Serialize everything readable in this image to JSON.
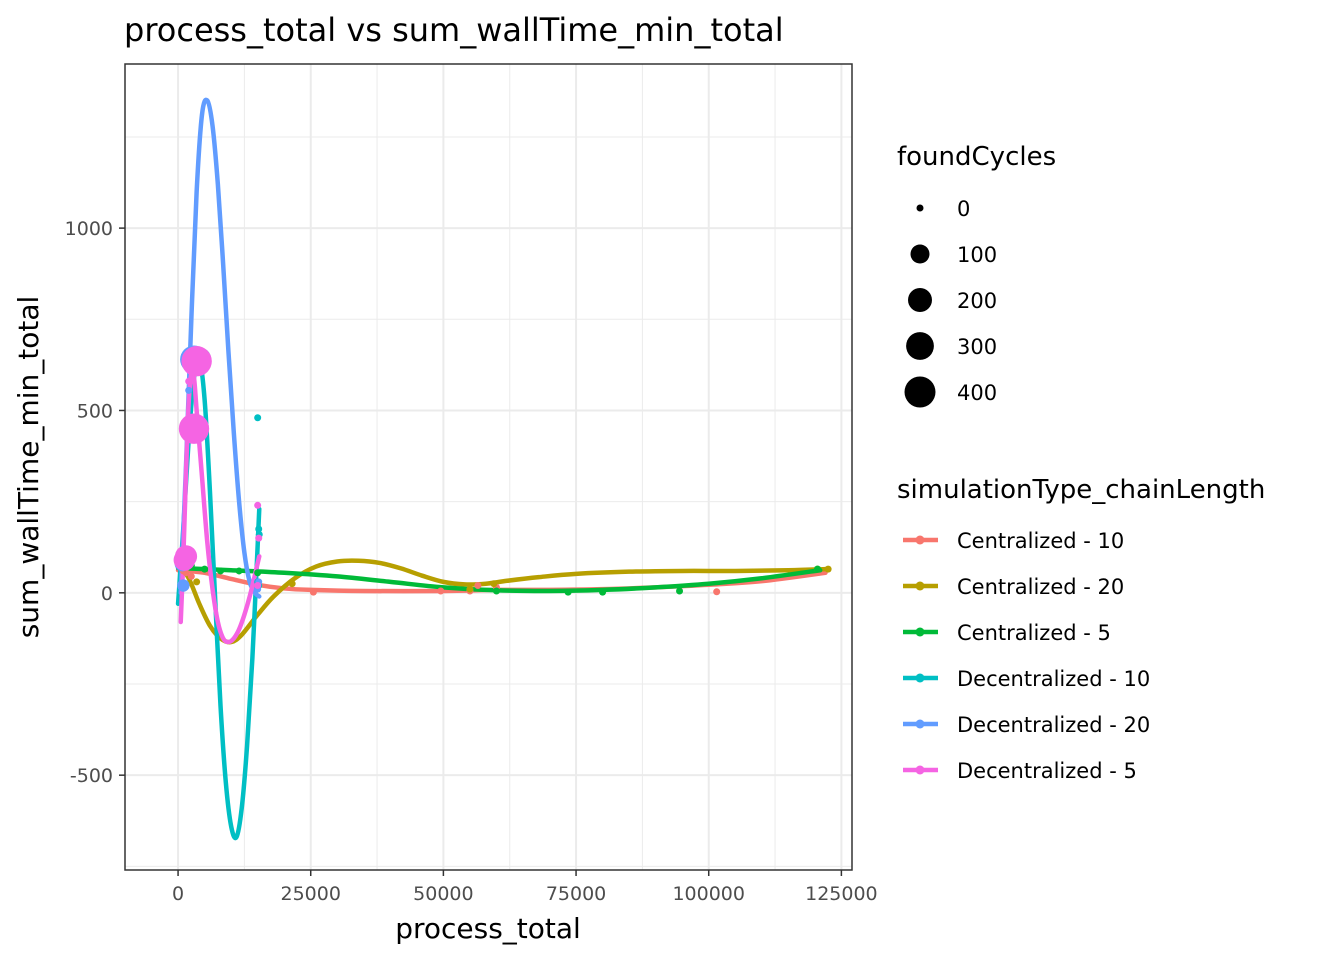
{
  "chart_data": {
    "type": "scatter",
    "title": "process_total  vs  sum_wallTime_min_total",
    "xlabel": "process_total",
    "ylabel": "sum_wallTime_min_total",
    "xlim": [
      -10000,
      127000
    ],
    "ylim": [
      -760,
      1450
    ],
    "x_ticks": [
      0,
      25000,
      50000,
      75000,
      100000,
      125000
    ],
    "x_tick_labels": [
      "0",
      "25000",
      "50000",
      "75000",
      "100000",
      "125000"
    ],
    "y_ticks": [
      -500,
      0,
      500,
      1000
    ],
    "y_tick_labels": [
      "-500",
      "0",
      "500",
      "1000"
    ],
    "grid": true,
    "smooth_lines": true,
    "size_legend": {
      "title": "foundCycles",
      "labels": [
        "0",
        "100",
        "200",
        "300",
        "400"
      ],
      "values": [
        0,
        100,
        200,
        300,
        400
      ]
    },
    "color_legend": {
      "title": "simulationType_chainLength",
      "placement": "right"
    },
    "series": [
      {
        "name": "Centralized - 10",
        "color": "#F8766D",
        "points": [
          [
            1000,
            60,
            0
          ],
          [
            1500,
            55,
            0
          ],
          [
            2500,
            45,
            0
          ],
          [
            15000,
            20,
            0
          ],
          [
            25500,
            2,
            0
          ],
          [
            49500,
            5,
            0
          ],
          [
            55000,
            5,
            0
          ],
          [
            56500,
            20,
            0
          ],
          [
            60000,
            15,
            0
          ],
          [
            101500,
            3,
            0
          ]
        ],
        "curve": [
          [
            0,
            62
          ],
          [
            5000,
            55
          ],
          [
            10000,
            38
          ],
          [
            15000,
            22
          ],
          [
            20000,
            12
          ],
          [
            25000,
            8
          ],
          [
            35000,
            5
          ],
          [
            50000,
            5
          ],
          [
            60000,
            8
          ],
          [
            70000,
            8
          ],
          [
            80000,
            10
          ],
          [
            90000,
            15
          ],
          [
            100000,
            22
          ],
          [
            110000,
            32
          ],
          [
            122000,
            55
          ]
        ]
      },
      {
        "name": "Centralized - 20",
        "color": "#B79F00",
        "points": [
          [
            1000,
            90,
            0
          ],
          [
            2000,
            85,
            0
          ],
          [
            3500,
            30,
            0
          ],
          [
            21500,
            25,
            0
          ],
          [
            55000,
            10,
            0
          ],
          [
            59500,
            25,
            0
          ],
          [
            120500,
            65,
            0
          ],
          [
            122500,
            65,
            0
          ]
        ],
        "curve": [
          [
            0,
            80
          ],
          [
            2000,
            40
          ],
          [
            4000,
            -30
          ],
          [
            6000,
            -90
          ],
          [
            8000,
            -125
          ],
          [
            10000,
            -135
          ],
          [
            12000,
            -115
          ],
          [
            15000,
            -60
          ],
          [
            18000,
            -10
          ],
          [
            22000,
            40
          ],
          [
            26000,
            72
          ],
          [
            30000,
            86
          ],
          [
            34000,
            88
          ],
          [
            38000,
            82
          ],
          [
            42000,
            67
          ],
          [
            46000,
            47
          ],
          [
            50000,
            30
          ],
          [
            54000,
            23
          ],
          [
            58000,
            25
          ],
          [
            62000,
            33
          ],
          [
            68000,
            43
          ],
          [
            75000,
            52
          ],
          [
            85000,
            58
          ],
          [
            95000,
            60
          ],
          [
            105000,
            60
          ],
          [
            115000,
            62
          ],
          [
            122000,
            65
          ]
        ]
      },
      {
        "name": "Centralized - 5",
        "color": "#00BA38",
        "points": [
          [
            2500,
            75,
            0
          ],
          [
            5000,
            65,
            0
          ],
          [
            8000,
            60,
            0
          ],
          [
            11500,
            60,
            0
          ],
          [
            15000,
            55,
            0
          ],
          [
            60000,
            5,
            0
          ],
          [
            73500,
            2,
            0
          ],
          [
            80000,
            2,
            0
          ],
          [
            94500,
            5,
            0
          ],
          [
            120500,
            65,
            0
          ]
        ],
        "curve": [
          [
            0,
            68
          ],
          [
            10000,
            62
          ],
          [
            20000,
            55
          ],
          [
            30000,
            45
          ],
          [
            40000,
            30
          ],
          [
            50000,
            15
          ],
          [
            60000,
            7
          ],
          [
            70000,
            5
          ],
          [
            80000,
            8
          ],
          [
            90000,
            15
          ],
          [
            100000,
            25
          ],
          [
            110000,
            40
          ],
          [
            121000,
            62
          ]
        ]
      },
      {
        "name": "Decentralized - 10",
        "color": "#00BFC4",
        "points": [
          [
            1500,
            75,
            0
          ],
          [
            2000,
            75,
            0
          ],
          [
            4000,
            640,
            200
          ],
          [
            15000,
            480,
            0
          ],
          [
            15200,
            175,
            0
          ],
          [
            15300,
            160,
            0
          ],
          [
            15000,
            30,
            0
          ],
          [
            15200,
            20,
            0
          ]
        ],
        "curve": [
          [
            0,
            -30
          ],
          [
            1000,
            180
          ],
          [
            2000,
            420
          ],
          [
            3000,
            590
          ],
          [
            4000,
            640
          ],
          [
            5000,
            530
          ],
          [
            6000,
            280
          ],
          [
            7000,
            -20
          ],
          [
            8000,
            -310
          ],
          [
            9000,
            -520
          ],
          [
            10000,
            -640
          ],
          [
            11000,
            -670
          ],
          [
            12000,
            -590
          ],
          [
            13000,
            -420
          ],
          [
            14000,
            -180
          ],
          [
            15000,
            130
          ],
          [
            15300,
            230
          ]
        ]
      },
      {
        "name": "Decentralized - 20",
        "color": "#619CFF",
        "points": [
          [
            800,
            80,
            50
          ],
          [
            1000,
            20,
            20
          ],
          [
            2000,
            555,
            0
          ],
          [
            3000,
            640,
            300
          ],
          [
            15000,
            10,
            0
          ],
          [
            15200,
            30,
            0
          ]
        ],
        "curve": [
          [
            500,
            0
          ],
          [
            1500,
            350
          ],
          [
            2500,
            750
          ],
          [
            3500,
            1100
          ],
          [
            4500,
            1310
          ],
          [
            5500,
            1350
          ],
          [
            6500,
            1280
          ],
          [
            7500,
            1120
          ],
          [
            8500,
            900
          ],
          [
            9500,
            660
          ],
          [
            10500,
            440
          ],
          [
            11500,
            250
          ],
          [
            12500,
            110
          ],
          [
            13500,
            30
          ],
          [
            14500,
            0
          ],
          [
            15300,
            -10
          ]
        ]
      },
      {
        "name": "Decentralized - 5",
        "color": "#F564E3",
        "points": [
          [
            1200,
            90,
            150
          ],
          [
            1500,
            100,
            160
          ],
          [
            2000,
            580,
            0
          ],
          [
            2500,
            610,
            0
          ],
          [
            3000,
            450,
            380
          ],
          [
            3500,
            635,
            380
          ],
          [
            15000,
            240,
            0
          ],
          [
            15200,
            150,
            0
          ],
          [
            15000,
            20,
            0
          ]
        ],
        "curve": [
          [
            500,
            -80
          ],
          [
            1000,
            100
          ],
          [
            1500,
            330
          ],
          [
            2000,
            520
          ],
          [
            2500,
            600
          ],
          [
            3000,
            590
          ],
          [
            3500,
            500
          ],
          [
            4500,
            320
          ],
          [
            5500,
            140
          ],
          [
            6500,
            10
          ],
          [
            7500,
            -80
          ],
          [
            8500,
            -125
          ],
          [
            9500,
            -135
          ],
          [
            10500,
            -125
          ],
          [
            11500,
            -100
          ],
          [
            12500,
            -60
          ],
          [
            13500,
            -10
          ],
          [
            14500,
            50
          ],
          [
            15300,
            100
          ]
        ]
      }
    ]
  }
}
